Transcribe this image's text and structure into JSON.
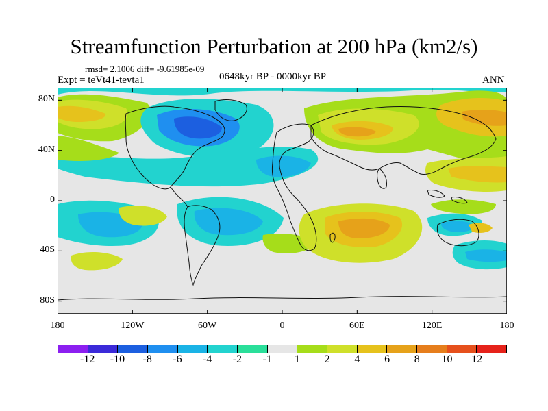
{
  "header": {
    "title": "Streamfunction Perturbation at 200 hPa (km2/s)",
    "stats": "rmsd= 2.1006 diff= -9.61985e-09",
    "experiment": "Expt = teVt41-tevta1",
    "period": "0648kyr BP - 0000kyr BP",
    "season": "ANN"
  },
  "map": {
    "lat_ticks": [
      "80N",
      "40N",
      "0",
      "40S",
      "80S"
    ],
    "lat_values": [
      80,
      40,
      0,
      -40,
      -80
    ],
    "lon_ticks": [
      "180",
      "120W",
      "60W",
      "0",
      "60E",
      "120E",
      "180"
    ],
    "lon_values": [
      -180,
      -120,
      -60,
      0,
      60,
      120,
      180
    ],
    "lat_range": [
      -90,
      90
    ],
    "lon_range": [
      -180,
      180
    ]
  },
  "colorbar": {
    "labels": [
      "-12",
      "-10",
      "-8",
      "-6",
      "-4",
      "-2",
      "-1",
      "1",
      "2",
      "4",
      "6",
      "8",
      "10",
      "12"
    ],
    "colors": [
      "#8c1ff0",
      "#3b2ad9",
      "#1c5fe0",
      "#1f8ff0",
      "#1ab3e6",
      "#22d3cf",
      "#2adf9a",
      "#e6e6e6",
      "#a6dd1a",
      "#cfe02a",
      "#e6c21c",
      "#e6a21a",
      "#e67e1c",
      "#e6501c",
      "#e6221a"
    ]
  }
}
